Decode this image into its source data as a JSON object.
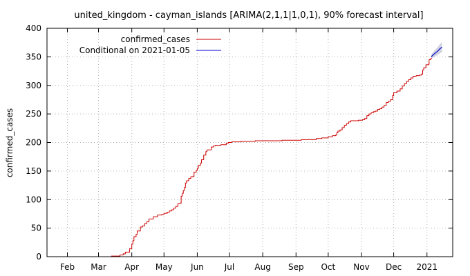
{
  "chart_data": {
    "type": "line",
    "title": "united_kingdom - cayman_islands [ARIMA(2,1,1|1,0,1), 90% forecast interval]",
    "xlabel": "",
    "ylabel": "confirmed_cases",
    "x_range": [
      "2020-01-13",
      "2021-01-25"
    ],
    "ylim": [
      0,
      400
    ],
    "y_ticks": [
      0,
      50,
      100,
      150,
      200,
      250,
      300,
      350,
      400
    ],
    "x_ticks": [
      {
        "date": "2020-02-01",
        "label": "Feb"
      },
      {
        "date": "2020-03-01",
        "label": "Mar"
      },
      {
        "date": "2020-04-01",
        "label": "Apr"
      },
      {
        "date": "2020-05-01",
        "label": "May"
      },
      {
        "date": "2020-06-01",
        "label": "Jun"
      },
      {
        "date": "2020-07-01",
        "label": "Jul"
      },
      {
        "date": "2020-08-01",
        "label": "Aug"
      },
      {
        "date": "2020-09-01",
        "label": "Sep"
      },
      {
        "date": "2020-10-01",
        "label": "Oct"
      },
      {
        "date": "2020-11-01",
        "label": "Nov"
      },
      {
        "date": "2020-12-01",
        "label": "Dec"
      },
      {
        "date": "2021-01-01",
        "label": "2021"
      }
    ],
    "grid": true,
    "legend_position": "top-left",
    "series": [
      {
        "name": "confirmed_cases",
        "color": "#cc0000",
        "points": [
          [
            "2020-03-12",
            0
          ],
          [
            "2020-03-13",
            1
          ],
          [
            "2020-03-20",
            1
          ],
          [
            "2020-03-21",
            3
          ],
          [
            "2020-03-24",
            5
          ],
          [
            "2020-03-26",
            8
          ],
          [
            "2020-03-29",
            8
          ],
          [
            "2020-03-30",
            14
          ],
          [
            "2020-04-01",
            22
          ],
          [
            "2020-04-02",
            28
          ],
          [
            "2020-04-03",
            35
          ],
          [
            "2020-04-05",
            39
          ],
          [
            "2020-04-06",
            45
          ],
          [
            "2020-04-08",
            45
          ],
          [
            "2020-04-09",
            52
          ],
          [
            "2020-04-11",
            54
          ],
          [
            "2020-04-13",
            58
          ],
          [
            "2020-04-15",
            61
          ],
          [
            "2020-04-17",
            66
          ],
          [
            "2020-04-19",
            66
          ],
          [
            "2020-04-21",
            70
          ],
          [
            "2020-04-23",
            70
          ],
          [
            "2020-04-25",
            73
          ],
          [
            "2020-04-27",
            73
          ],
          [
            "2020-04-29",
            74
          ],
          [
            "2020-05-01",
            76
          ],
          [
            "2020-05-04",
            78
          ],
          [
            "2020-05-06",
            80
          ],
          [
            "2020-05-08",
            82
          ],
          [
            "2020-05-10",
            85
          ],
          [
            "2020-05-12",
            88
          ],
          [
            "2020-05-14",
            93
          ],
          [
            "2020-05-16",
            94
          ],
          [
            "2020-05-17",
            106
          ],
          [
            "2020-05-18",
            111
          ],
          [
            "2020-05-19",
            116
          ],
          [
            "2020-05-20",
            121
          ],
          [
            "2020-05-21",
            129
          ],
          [
            "2020-05-22",
            133
          ],
          [
            "2020-05-24",
            137
          ],
          [
            "2020-05-26",
            140
          ],
          [
            "2020-05-28",
            141
          ],
          [
            "2020-05-29",
            148
          ],
          [
            "2020-05-31",
            151
          ],
          [
            "2020-06-01",
            155
          ],
          [
            "2020-06-02",
            160
          ],
          [
            "2020-06-04",
            164
          ],
          [
            "2020-06-05",
            170
          ],
          [
            "2020-06-07",
            178
          ],
          [
            "2020-06-09",
            184
          ],
          [
            "2020-06-10",
            187
          ],
          [
            "2020-06-13",
            187
          ],
          [
            "2020-06-14",
            192
          ],
          [
            "2020-06-16",
            194
          ],
          [
            "2020-06-18",
            195
          ],
          [
            "2020-06-21",
            195
          ],
          [
            "2020-06-23",
            196
          ],
          [
            "2020-06-27",
            196
          ],
          [
            "2020-06-28",
            199
          ],
          [
            "2020-06-30",
            200
          ],
          [
            "2020-07-03",
            201
          ],
          [
            "2020-07-10",
            201
          ],
          [
            "2020-07-12",
            202
          ],
          [
            "2020-07-20",
            202
          ],
          [
            "2020-07-25",
            203
          ],
          [
            "2020-08-10",
            203
          ],
          [
            "2020-08-18",
            203
          ],
          [
            "2020-08-19",
            204
          ],
          [
            "2020-09-05",
            204
          ],
          [
            "2020-09-06",
            205
          ],
          [
            "2020-09-18",
            205
          ],
          [
            "2020-09-20",
            207
          ],
          [
            "2020-09-25",
            208
          ],
          [
            "2020-10-01",
            210
          ],
          [
            "2020-10-05",
            212
          ],
          [
            "2020-10-08",
            213
          ],
          [
            "2020-10-09",
            217
          ],
          [
            "2020-10-10",
            220
          ],
          [
            "2020-10-12",
            222
          ],
          [
            "2020-10-14",
            226
          ],
          [
            "2020-10-16",
            230
          ],
          [
            "2020-10-18",
            233
          ],
          [
            "2020-10-20",
            236
          ],
          [
            "2020-10-22",
            238
          ],
          [
            "2020-10-27",
            238
          ],
          [
            "2020-10-29",
            239
          ],
          [
            "2020-11-02",
            240
          ],
          [
            "2020-11-04",
            242
          ],
          [
            "2020-11-06",
            247
          ],
          [
            "2020-11-08",
            250
          ],
          [
            "2020-11-10",
            252
          ],
          [
            "2020-11-12",
            254
          ],
          [
            "2020-11-14",
            255
          ],
          [
            "2020-11-16",
            258
          ],
          [
            "2020-11-18",
            259
          ],
          [
            "2020-11-20",
            262
          ],
          [
            "2020-11-22",
            265
          ],
          [
            "2020-11-24",
            270
          ],
          [
            "2020-11-26",
            272
          ],
          [
            "2020-11-28",
            275
          ],
          [
            "2020-11-30",
            282
          ],
          [
            "2020-12-01",
            287
          ],
          [
            "2020-12-04",
            290
          ],
          [
            "2020-12-07",
            294
          ],
          [
            "2020-12-09",
            299
          ],
          [
            "2020-12-11",
            303
          ],
          [
            "2020-12-13",
            307
          ],
          [
            "2020-12-15",
            310
          ],
          [
            "2020-12-17",
            313
          ],
          [
            "2020-12-19",
            316
          ],
          [
            "2020-12-22",
            317
          ],
          [
            "2020-12-25",
            318
          ],
          [
            "2020-12-27",
            320
          ],
          [
            "2020-12-28",
            327
          ],
          [
            "2020-12-29",
            331
          ],
          [
            "2020-12-31",
            336
          ],
          [
            "2021-01-02",
            337
          ],
          [
            "2021-01-03",
            345
          ],
          [
            "2021-01-04",
            346
          ],
          [
            "2021-01-05",
            348
          ]
        ]
      },
      {
        "name": "Conditional on 2021-01-05",
        "color": "#0000cc",
        "band_color": "#c8c8d8",
        "points": [
          [
            "2021-01-05",
            350
          ],
          [
            "2021-01-07",
            354
          ],
          [
            "2021-01-09",
            357
          ],
          [
            "2021-01-11",
            360
          ],
          [
            "2021-01-13",
            364
          ],
          [
            "2021-01-15",
            367
          ]
        ],
        "lower": [
          346,
          349,
          351,
          353,
          356,
          358
        ],
        "upper": [
          354,
          359,
          363,
          367,
          372,
          376
        ]
      }
    ]
  }
}
